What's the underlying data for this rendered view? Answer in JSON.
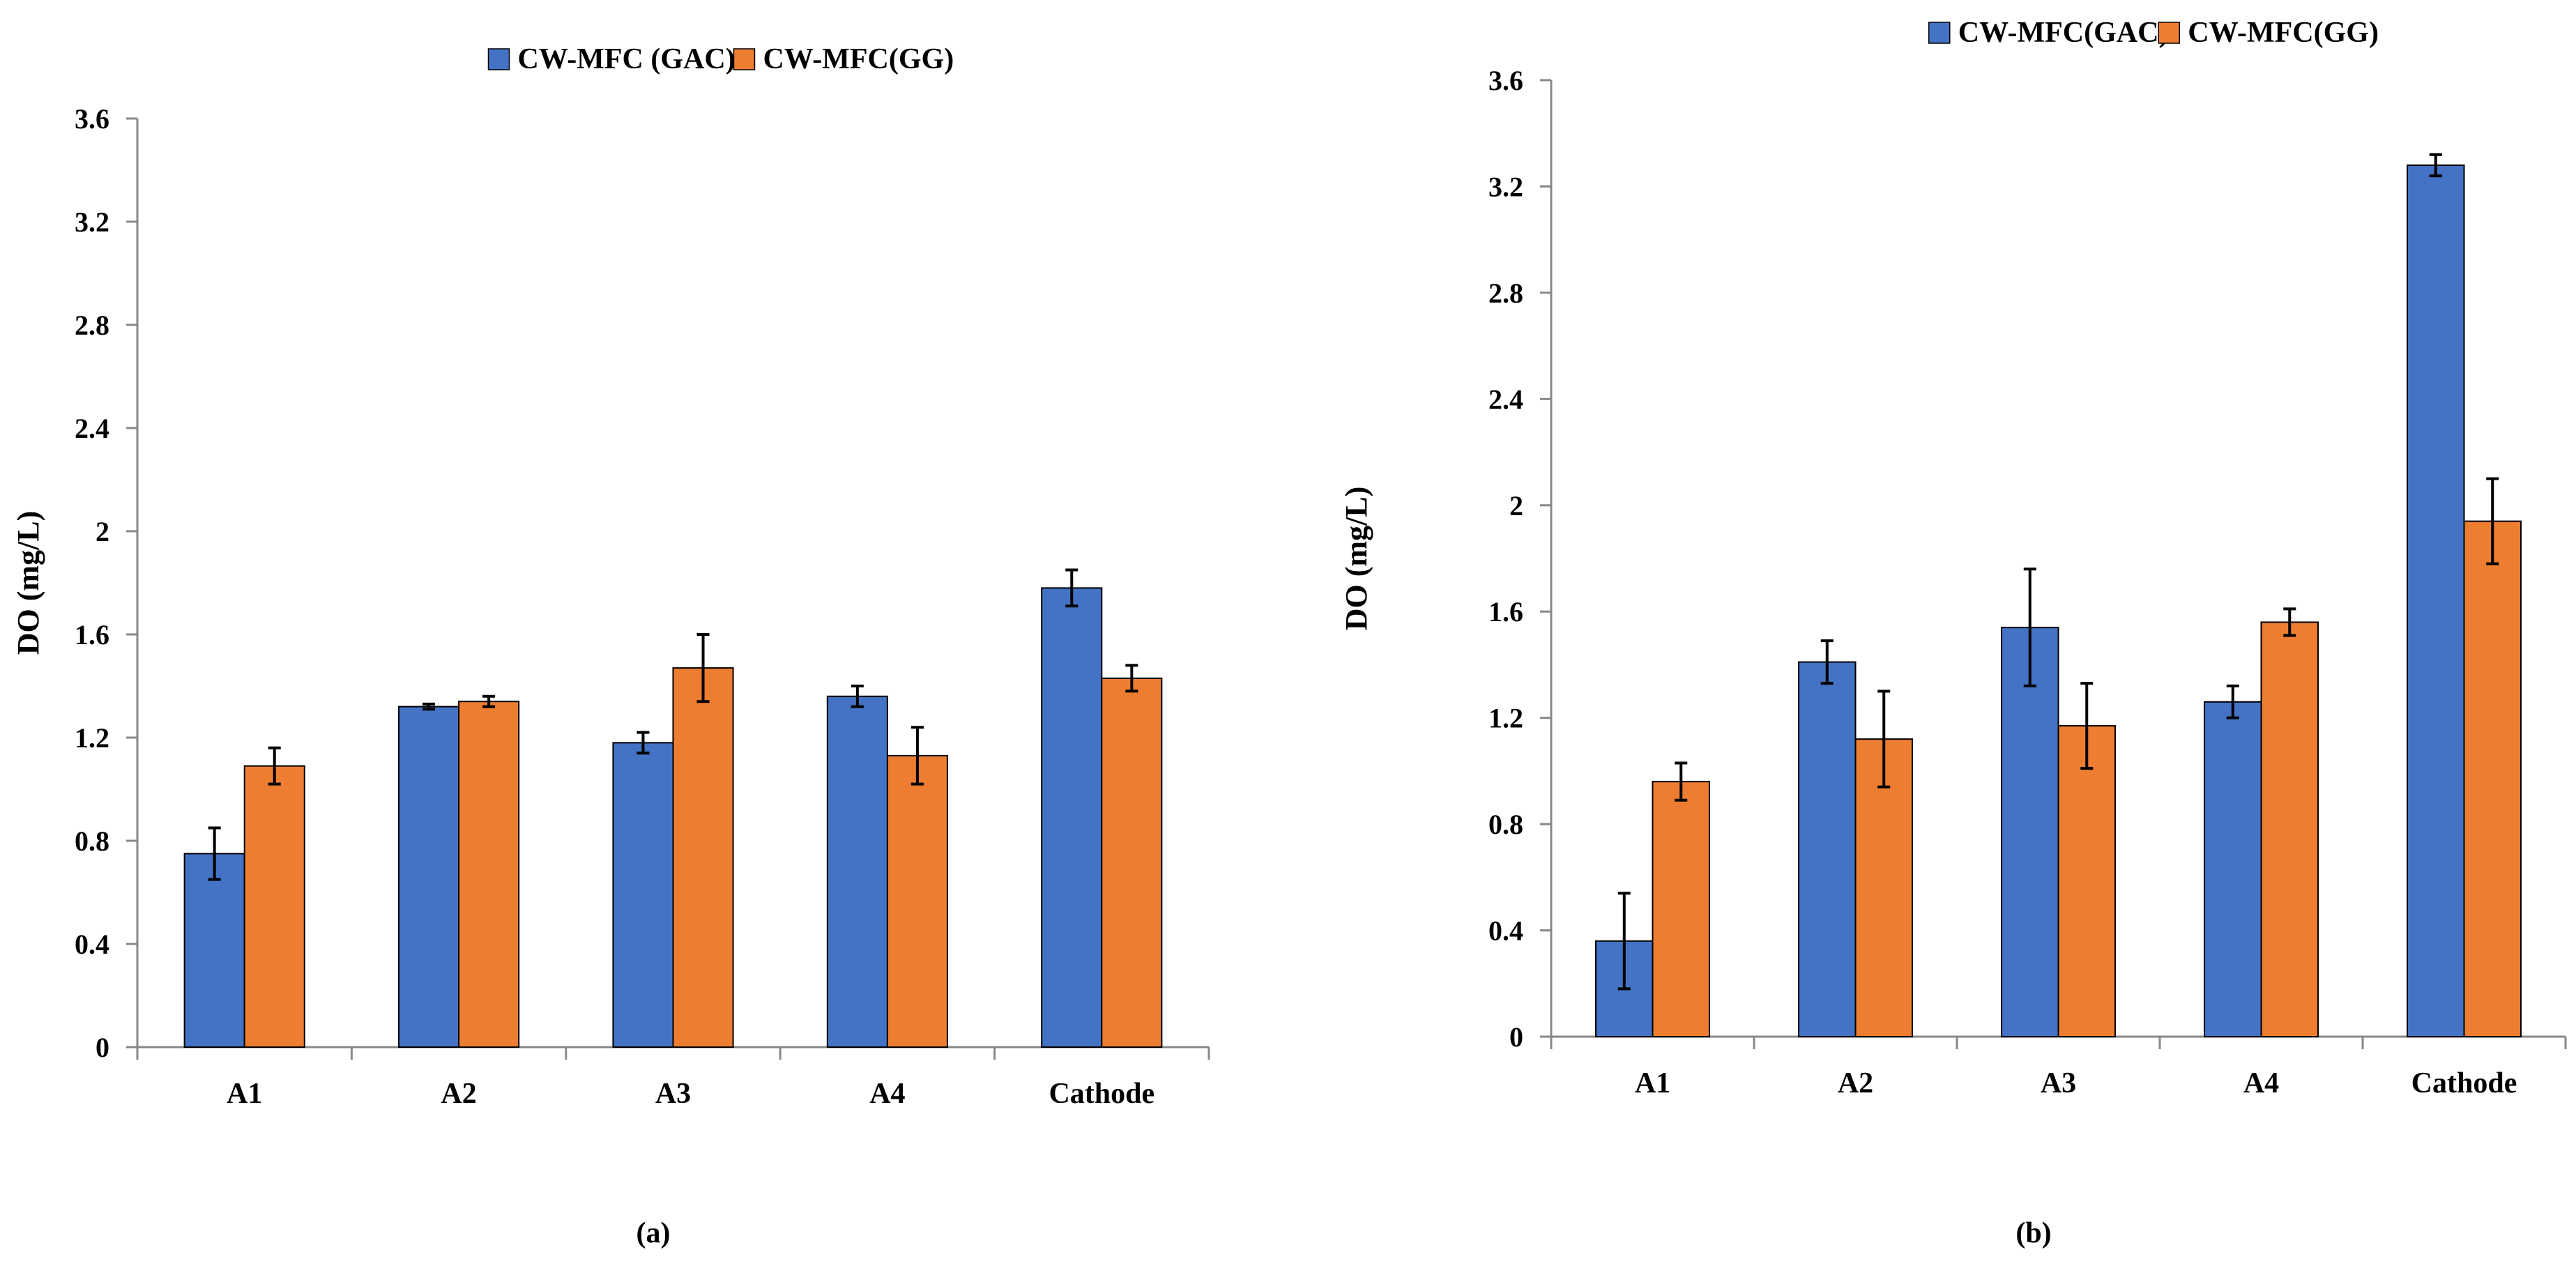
{
  "chart_data": [
    {
      "type": "bar",
      "panel_label": "(a)",
      "ylabel": "DO (mg/L)",
      "ylim": [
        0,
        3.6
      ],
      "yticks": [
        "0",
        "0.4",
        "0.8",
        "1.2",
        "1.6",
        "2",
        "2.4",
        "2.8",
        "3.2",
        "3.6"
      ],
      "categories": [
        "A1",
        "A2",
        "A3",
        "A4",
        "Cathode"
      ],
      "legend_position": "top-center",
      "series": [
        {
          "name": "CW-MFC (GAC)",
          "color": "#4472C4",
          "values": [
            0.75,
            1.32,
            1.18,
            1.36,
            1.78
          ],
          "errors": [
            0.1,
            0.01,
            0.04,
            0.04,
            0.07
          ]
        },
        {
          "name": "CW-MFC(GG)",
          "color": "#ED7D31",
          "values": [
            1.09,
            1.34,
            1.47,
            1.13,
            1.43
          ],
          "errors": [
            0.07,
            0.02,
            0.13,
            0.11,
            0.05
          ]
        }
      ]
    },
    {
      "type": "bar",
      "panel_label": "(b)",
      "ylabel": "DO (mg/L)",
      "ylim": [
        0,
        3.6
      ],
      "yticks": [
        "0",
        "0.4",
        "0.8",
        "1.2",
        "1.6",
        "2",
        "2.4",
        "2.8",
        "3.2",
        "3.6"
      ],
      "categories": [
        "A1",
        "A2",
        "A3",
        "A4",
        "Cathode"
      ],
      "legend_position": "top-center",
      "series": [
        {
          "name": "CW-MFC(GAC)",
          "color": "#4472C4",
          "values": [
            0.36,
            1.41,
            1.54,
            1.26,
            3.28
          ],
          "errors": [
            0.18,
            0.08,
            0.22,
            0.06,
            0.04
          ]
        },
        {
          "name": "CW-MFC(GG)",
          "color": "#ED7D31",
          "values": [
            0.96,
            1.12,
            1.17,
            1.56,
            1.94
          ],
          "errors": [
            0.07,
            0.18,
            0.16,
            0.05,
            0.16
          ]
        }
      ]
    }
  ]
}
